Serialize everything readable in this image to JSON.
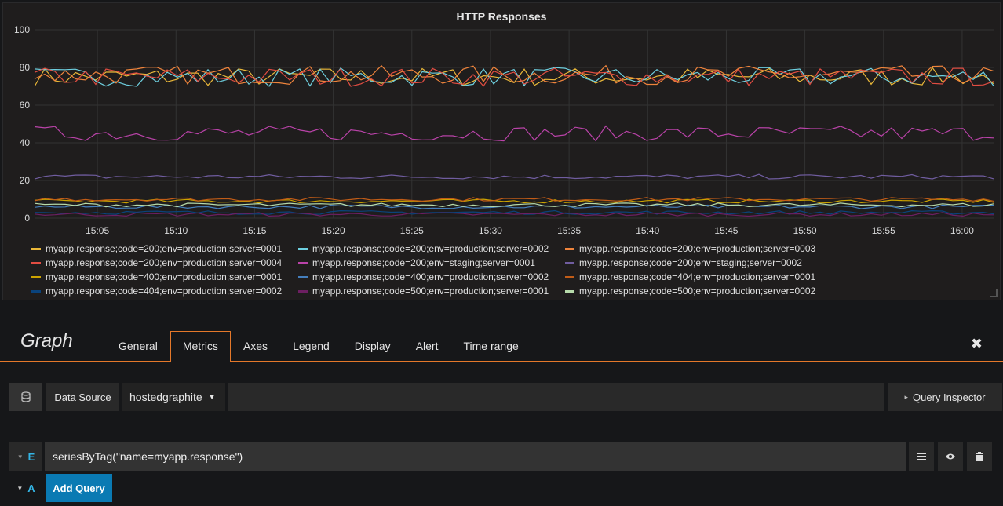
{
  "panel": {
    "title": "HTTP Responses"
  },
  "chart_data": {
    "type": "line",
    "title": "HTTP Responses",
    "xlabel": "",
    "ylabel": "",
    "ylim": [
      0,
      100
    ],
    "y_ticks": [
      "0",
      "20",
      "40",
      "60",
      "80",
      "100"
    ],
    "x_ticks": [
      "15:05",
      "15:10",
      "15:15",
      "15:20",
      "15:25",
      "15:30",
      "15:35",
      "15:40",
      "15:45",
      "15:50",
      "15:55",
      "16:00"
    ],
    "x_range": [
      "15:01",
      "16:02"
    ],
    "grid": true,
    "legend_position": "bottom",
    "series": [
      {
        "name": "myapp.response;code=200;env=production;server=0001",
        "color": "#eab839",
        "level": 75
      },
      {
        "name": "myapp.response;code=200;env=production;server=0002",
        "color": "#6ed0e0",
        "level": 75
      },
      {
        "name": "myapp.response;code=200;env=production;server=0003",
        "color": "#ef843c",
        "level": 76
      },
      {
        "name": "myapp.response;code=200;env=production;server=0004",
        "color": "#e24d42",
        "level": 75
      },
      {
        "name": "myapp.response;code=200;env=staging;server=0001",
        "color": "#ba43a9",
        "level": 45
      },
      {
        "name": "myapp.response;code=200;env=staging;server=0002",
        "color": "#705da0",
        "level": 22
      },
      {
        "name": "myapp.response;code=400;env=production;server=0001",
        "color": "#cca300",
        "level": 9
      },
      {
        "name": "myapp.response;code=400;env=production;server=0002",
        "color": "#447ebc",
        "level": 6
      },
      {
        "name": "myapp.response;code=404;env=production;server=0001",
        "color": "#c15c17",
        "level": 10
      },
      {
        "name": "myapp.response;code=404;env=production;server=0002",
        "color": "#0a437c",
        "level": 3
      },
      {
        "name": "myapp.response;code=500;env=production;server=0001",
        "color": "#6d1f62",
        "level": 2
      },
      {
        "name": "myapp.response;code=500;env=production;server=0002",
        "color": "#b7dbab",
        "level": 7
      }
    ]
  },
  "editor": {
    "title": "Graph",
    "tabs": [
      "General",
      "Metrics",
      "Axes",
      "Legend",
      "Display",
      "Alert",
      "Time range"
    ],
    "active_tab": "Metrics",
    "close_symbol": "✖"
  },
  "datasource": {
    "label": "Data Source",
    "selected": "hostedgraphite",
    "inspector_label": "Query Inspector",
    "inspector_caret": "▸"
  },
  "queries": [
    {
      "letter": "E",
      "expression": "seriesByTag(\"name=myapp.response\")"
    }
  ],
  "add_query": {
    "letter": "A",
    "label": "Add Query"
  },
  "icons": {
    "datasource": "database-icon",
    "menu": "hamburger-icon",
    "toggle": "eye-icon",
    "delete": "trash-icon"
  }
}
